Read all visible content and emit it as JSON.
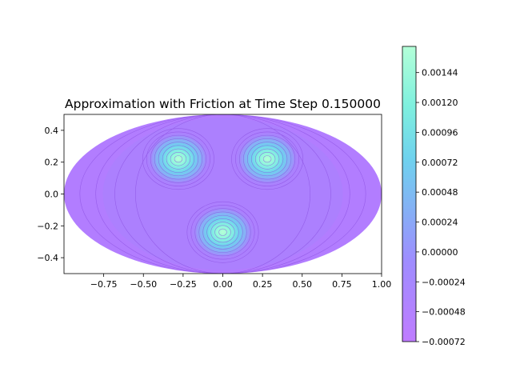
{
  "chart_data": {
    "type": "heatmap",
    "title": "Approximation with Friction at Time Step 0.150000",
    "xlabel": "",
    "ylabel": "",
    "xlim": [
      -1.0,
      1.0
    ],
    "ylim": [
      -0.5,
      0.5
    ],
    "x_ticks": [
      "−0.75",
      "−0.50",
      "−0.25",
      "0.00",
      "0.25",
      "0.50",
      "0.75",
      "1.00"
    ],
    "y_ticks": [
      "0.4",
      "0.2",
      "0.0",
      "−0.2",
      "−0.4"
    ],
    "x_tick_values": [
      -0.75,
      -0.5,
      -0.25,
      0.0,
      0.25,
      0.5,
      0.75,
      1.0
    ],
    "y_tick_values": [
      0.4,
      0.2,
      0.0,
      -0.2,
      -0.4
    ],
    "projection": "mollweide-ellipse",
    "field_peaks": [
      {
        "x": -0.28,
        "y": 0.22,
        "value": 0.0015
      },
      {
        "x": 0.28,
        "y": 0.22,
        "value": 0.0015
      },
      {
        "x": 0.0,
        "y": -0.24,
        "value": 0.00155
      }
    ],
    "colorbar": {
      "min": -0.00072,
      "max": 0.00165,
      "colormap": "rainbow",
      "tick_values": [
        0.00144,
        0.0012,
        0.00096,
        0.00072,
        0.00048,
        0.00024,
        0.0,
        -0.00024,
        -0.00048,
        -0.00072
      ],
      "tick_labels": [
        "0.00144",
        "0.00120",
        "0.00096",
        "0.00072",
        "0.00048",
        "0.00024",
        "0.00000",
        "−0.00024",
        "−0.00048",
        "−0.00072"
      ]
    }
  }
}
